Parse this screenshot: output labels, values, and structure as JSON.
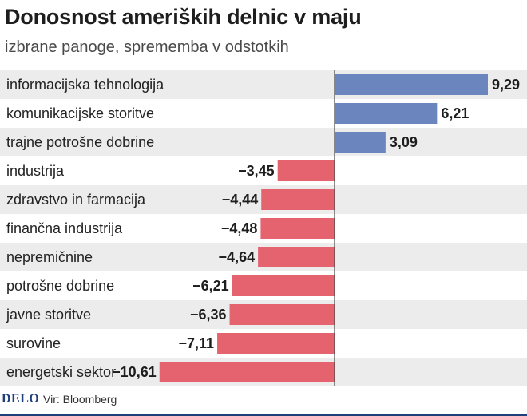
{
  "header": {
    "title": "Donosnost ameriških delnic v maju",
    "subtitle": "izbrane panoge, sprememba v odstotkih"
  },
  "footer": {
    "logo": "DELO",
    "source": "Vir: Bloomberg"
  },
  "colors": {
    "positive": "#6b86bf",
    "negative": "#e5626f",
    "stripe": "#ececec",
    "axis": "#444444"
  },
  "chart_data": {
    "type": "bar",
    "orientation": "horizontal",
    "title": "Donosnost ameriških delnic v maju",
    "subtitle": "izbrane panoge, sprememba v odstotkih",
    "categories": [
      "informacijska tehnologija",
      "komunikacijske storitve",
      "trajne potrošne dobrine",
      "industrija",
      "zdravstvo in farmacija",
      "finančna industrija",
      "nepremičnine",
      "potrošne dobrine",
      "javne storitve",
      "surovine",
      "energetski sektor"
    ],
    "values": [
      9.29,
      6.21,
      3.09,
      -3.45,
      -4.44,
      -4.48,
      -4.64,
      -6.21,
      -6.36,
      -7.11,
      -10.61
    ],
    "value_labels": [
      "9,29",
      "6,21",
      "3,09",
      "−3,45",
      "−4,44",
      "−4,48",
      "−4,64",
      "−6,21",
      "−6,36",
      "−7,11",
      "−10,61"
    ],
    "xlim": [
      -12.2,
      12.2
    ],
    "grid": false,
    "legend": "none"
  }
}
